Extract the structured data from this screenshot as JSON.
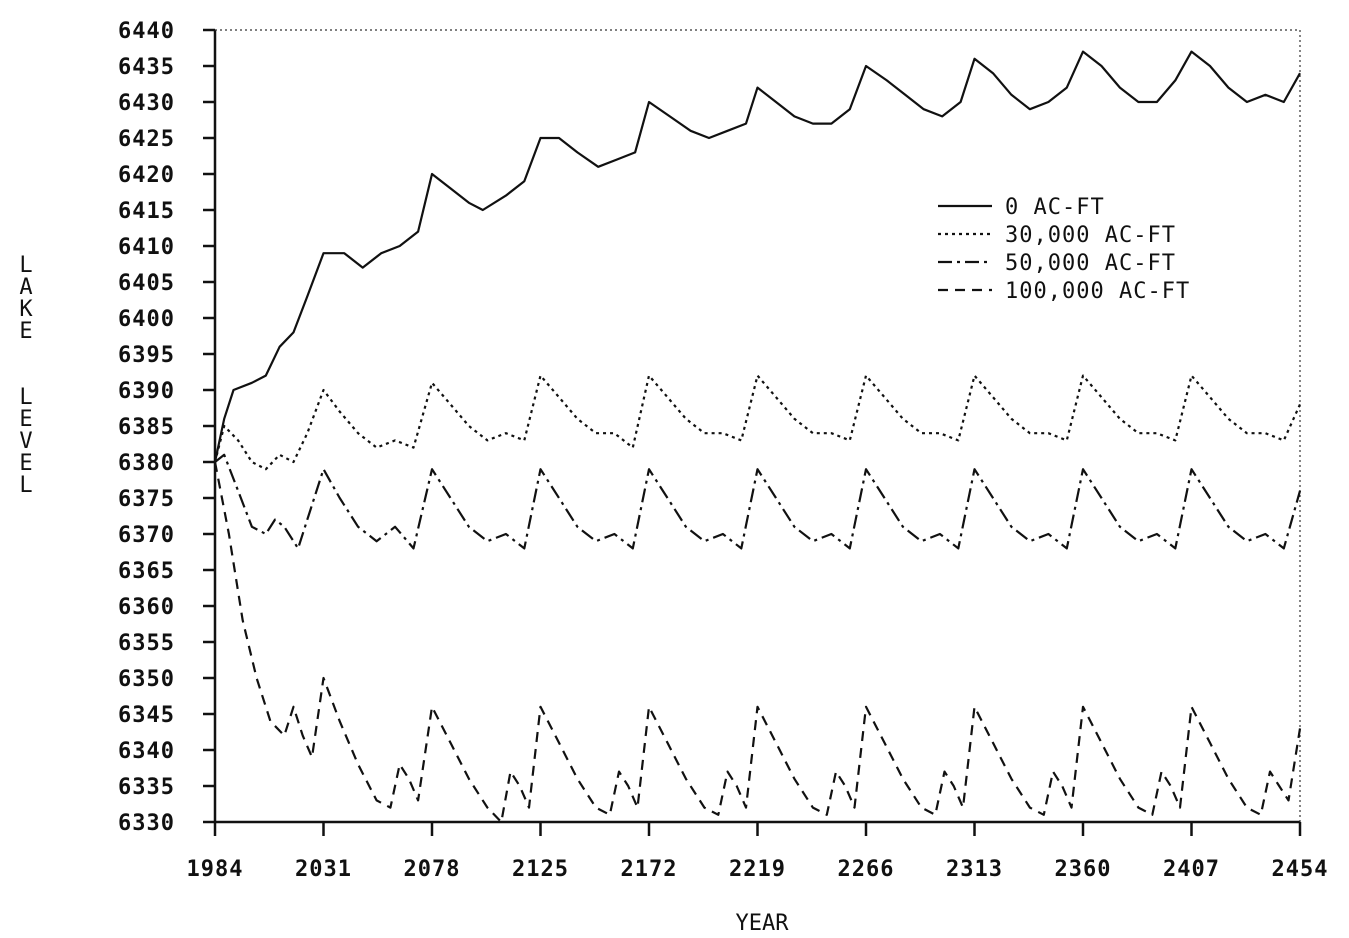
{
  "chart_data": {
    "type": "line",
    "title": "",
    "xlabel": "YEAR",
    "ylabel": "LAKE LEVEL",
    "xlim": [
      1984,
      2454
    ],
    "ylim": [
      6330,
      6440
    ],
    "x_ticks": [
      "1984",
      "2031",
      "2078",
      "2125",
      "2172",
      "2219",
      "2266",
      "2313",
      "2360",
      "2407",
      "2454"
    ],
    "y_ticks": [
      "6440",
      "6435",
      "6430",
      "6425",
      "6420",
      "6415",
      "6410",
      "6405",
      "6400",
      "6395",
      "6390",
      "6385",
      "6380",
      "6375",
      "6370",
      "6365",
      "6360",
      "6355",
      "6350",
      "6345",
      "6340",
      "6335",
      "6330"
    ],
    "legend_position": "upper-right",
    "series": [
      {
        "name": "0 AC-FT",
        "style": "solid",
        "x": [
          1984,
          1988,
          1992,
          2000,
          2006,
          2012,
          2018,
          2024,
          2031,
          2040,
          2048,
          2056,
          2064,
          2072,
          2078,
          2086,
          2094,
          2100,
          2110,
          2118,
          2125,
          2133,
          2141,
          2150,
          2158,
          2166,
          2172,
          2181,
          2190,
          2198,
          2206,
          2214,
          2219,
          2227,
          2235,
          2243,
          2251,
          2259,
          2266,
          2275,
          2283,
          2291,
          2299,
          2307,
          2313,
          2321,
          2329,
          2337,
          2345,
          2353,
          2360,
          2368,
          2376,
          2384,
          2392,
          2400,
          2407,
          2415,
          2423,
          2431,
          2439,
          2447,
          2454
        ],
        "values": [
          6380,
          6386,
          6390,
          6391,
          6392,
          6396,
          6398,
          6403,
          6409,
          6409,
          6407,
          6409,
          6410,
          6412,
          6420,
          6418,
          6416,
          6415,
          6417,
          6419,
          6425,
          6425,
          6423,
          6421,
          6422,
          6423,
          6430,
          6428,
          6426,
          6425,
          6426,
          6427,
          6432,
          6430,
          6428,
          6427,
          6427,
          6429,
          6435,
          6433,
          6431,
          6429,
          6428,
          6430,
          6436,
          6434,
          6431,
          6429,
          6430,
          6432,
          6437,
          6435,
          6432,
          6430,
          6430,
          6433,
          6437,
          6435,
          6432,
          6430,
          6431,
          6430,
          6434
        ]
      },
      {
        "name": "30,000 AC-FT",
        "style": "dotted",
        "x": [
          1984,
          1988,
          1994,
          2000,
          2006,
          2012,
          2018,
          2024,
          2031,
          2038,
          2046,
          2054,
          2062,
          2070,
          2078,
          2086,
          2094,
          2102,
          2110,
          2118,
          2125,
          2133,
          2141,
          2149,
          2157,
          2165,
          2172,
          2180,
          2188,
          2196,
          2204,
          2212,
          2219,
          2227,
          2235,
          2243,
          2251,
          2259,
          2266,
          2274,
          2282,
          2290,
          2298,
          2306,
          2313,
          2321,
          2329,
          2337,
          2345,
          2353,
          2360,
          2368,
          2376,
          2384,
          2392,
          2400,
          2407,
          2415,
          2423,
          2431,
          2439,
          2447,
          2454
        ],
        "values": [
          6380,
          6385,
          6383,
          6380,
          6379,
          6381,
          6380,
          6384,
          6390,
          6387,
          6384,
          6382,
          6383,
          6382,
          6391,
          6388,
          6385,
          6383,
          6384,
          6383,
          6392,
          6389,
          6386,
          6384,
          6384,
          6382,
          6392,
          6389,
          6386,
          6384,
          6384,
          6383,
          6392,
          6389,
          6386,
          6384,
          6384,
          6383,
          6392,
          6389,
          6386,
          6384,
          6384,
          6383,
          6392,
          6389,
          6386,
          6384,
          6384,
          6383,
          6392,
          6389,
          6386,
          6384,
          6384,
          6383,
          6392,
          6389,
          6386,
          6384,
          6384,
          6383,
          6388
        ]
      },
      {
        "name": "50,000 AC-FT",
        "style": "dash-dot",
        "x": [
          1984,
          1988,
          1994,
          2000,
          2006,
          2010,
          2014,
          2020,
          2024,
          2031,
          2038,
          2046,
          2054,
          2062,
          2070,
          2078,
          2086,
          2094,
          2102,
          2110,
          2118,
          2125,
          2133,
          2141,
          2149,
          2157,
          2165,
          2172,
          2180,
          2188,
          2196,
          2204,
          2212,
          2219,
          2227,
          2235,
          2243,
          2251,
          2259,
          2266,
          2274,
          2282,
          2290,
          2298,
          2306,
          2313,
          2321,
          2329,
          2337,
          2345,
          2353,
          2360,
          2368,
          2376,
          2384,
          2392,
          2400,
          2407,
          2415,
          2423,
          2431,
          2439,
          2447,
          2454
        ],
        "values": [
          6380,
          6381,
          6376,
          6371,
          6370,
          6372,
          6371,
          6368,
          6372,
          6379,
          6375,
          6371,
          6369,
          6371,
          6368,
          6379,
          6375,
          6371,
          6369,
          6370,
          6368,
          6379,
          6375,
          6371,
          6369,
          6370,
          6368,
          6379,
          6375,
          6371,
          6369,
          6370,
          6368,
          6379,
          6375,
          6371,
          6369,
          6370,
          6368,
          6379,
          6375,
          6371,
          6369,
          6370,
          6368,
          6379,
          6375,
          6371,
          6369,
          6370,
          6368,
          6379,
          6375,
          6371,
          6369,
          6370,
          6368,
          6379,
          6375,
          6371,
          6369,
          6370,
          6368,
          6376
        ]
      },
      {
        "name": "100,000 AC-FT",
        "style": "dashed",
        "x": [
          1984,
          1990,
          1996,
          2002,
          2008,
          2014,
          2018,
          2022,
          2026,
          2031,
          2038,
          2046,
          2054,
          2060,
          2064,
          2068,
          2072,
          2078,
          2086,
          2094,
          2102,
          2108,
          2112,
          2116,
          2120,
          2125,
          2133,
          2141,
          2149,
          2155,
          2159,
          2163,
          2167,
          2172,
          2180,
          2188,
          2196,
          2202,
          2206,
          2210,
          2214,
          2219,
          2227,
          2235,
          2243,
          2249,
          2253,
          2257,
          2261,
          2266,
          2274,
          2282,
          2290,
          2296,
          2300,
          2304,
          2308,
          2313,
          2321,
          2329,
          2337,
          2343,
          2347,
          2351,
          2355,
          2360,
          2368,
          2376,
          2384,
          2390,
          2394,
          2398,
          2402,
          2407,
          2415,
          2423,
          2431,
          2437,
          2441,
          2445,
          2449,
          2454
        ],
        "values": [
          6380,
          6370,
          6358,
          6350,
          6344,
          6342,
          6346,
          6342,
          6339,
          6350,
          6344,
          6338,
          6333,
          6332,
          6338,
          6336,
          6333,
          6346,
          6341,
          6336,
          6332,
          6330,
          6337,
          6335,
          6332,
          6346,
          6341,
          6336,
          6332,
          6331,
          6337,
          6335,
          6332,
          6346,
          6341,
          6336,
          6332,
          6331,
          6337,
          6335,
          6332,
          6346,
          6341,
          6336,
          6332,
          6331,
          6337,
          6335,
          6332,
          6346,
          6341,
          6336,
          6332,
          6331,
          6337,
          6335,
          6332,
          6346,
          6341,
          6336,
          6332,
          6331,
          6337,
          6335,
          6332,
          6346,
          6341,
          6336,
          6332,
          6331,
          6337,
          6335,
          6332,
          6346,
          6341,
          6336,
          6332,
          6331,
          6337,
          6335,
          6333,
          6343
        ]
      }
    ]
  }
}
